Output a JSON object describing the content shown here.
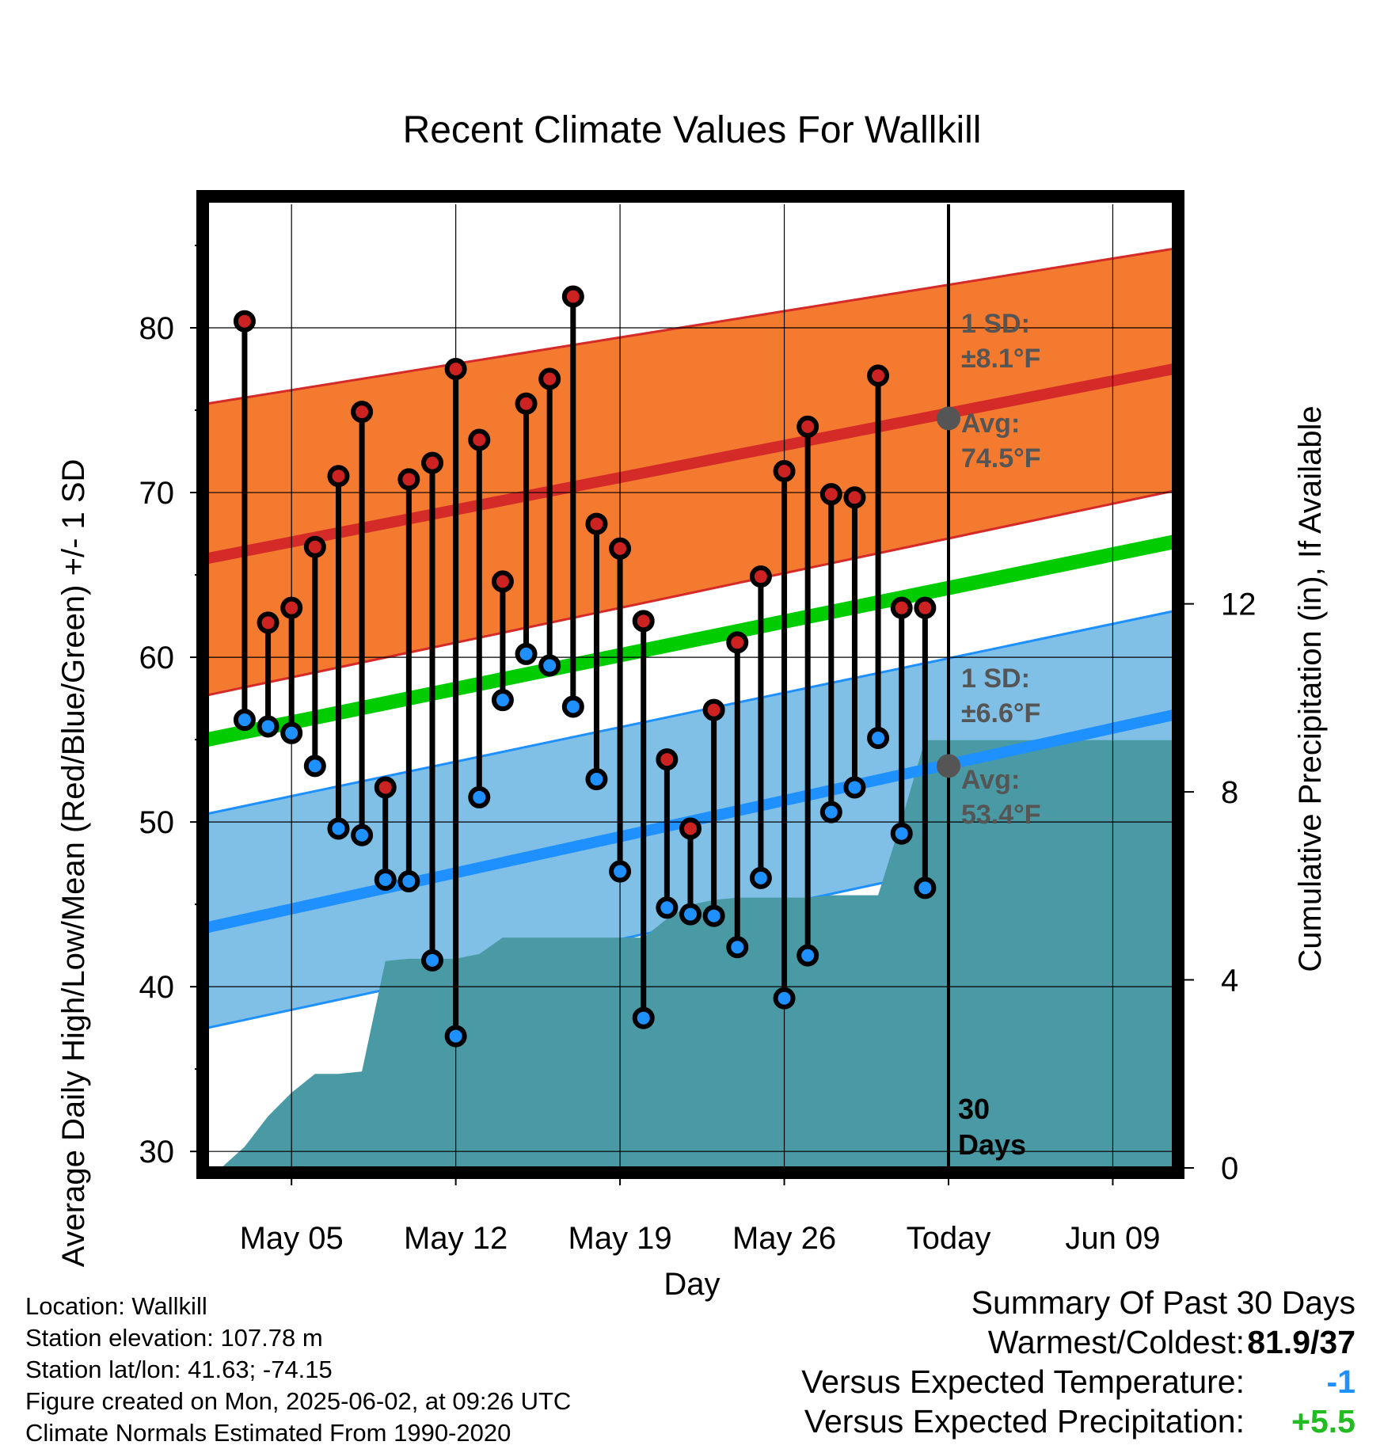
{
  "chart_data": {
    "type": "line",
    "title": "Recent Climate Values For Wallkill",
    "xlabel": "Day",
    "ylabel": "Average Daily High/Low/Mean (Red/Blue/Green) +/- 1 SD",
    "y2label": "Cumulative Precipitation (in), If Available",
    "x_tick_labels": [
      "May 05",
      "May 12",
      "May 19",
      "May 26",
      "Today",
      "Jun 09"
    ],
    "x_ticks": [
      "2025-05-05",
      "2025-05-12",
      "2025-05-19",
      "2025-05-26",
      "2025-06-02",
      "2025-06-09"
    ],
    "xlim": [
      "2025-05-01T10:00",
      "2025-06-11T14:00"
    ],
    "ylim": [
      29,
      87.5
    ],
    "yticks": [
      30,
      40,
      50,
      60,
      70,
      80
    ],
    "y2lim": [
      0,
      20.5
    ],
    "y2ticks": [
      0,
      4,
      8,
      12
    ],
    "grid": true,
    "today": "2025-06-02",
    "today_label": "30 Days",
    "normal_band_x": [
      "2025-05-01T10:00",
      "2025-06-11T14:00"
    ],
    "normal_high": {
      "mean": [
        66.0,
        77.5
      ],
      "band_low": [
        57.7,
        70.1
      ],
      "band_high": [
        75.4,
        84.8
      ],
      "sd_label": "1 SD:",
      "sd_value": "±8.1°F",
      "avg_label": "Avg:",
      "avg_value": "74.5°F",
      "avg_today": 74.5
    },
    "normal_low": {
      "mean": [
        43.6,
        56.5
      ],
      "band_low": [
        37.5,
        50.1
      ],
      "band_high": [
        50.5,
        62.8
      ],
      "sd_label": "1 SD:",
      "sd_value": "±6.6°F",
      "avg_label": "Avg:",
      "avg_value": "53.4°F",
      "avg_today": 53.4
    },
    "normal_mean": [
      55.0,
      67.0
    ],
    "daily": {
      "dates": [
        "2025-05-03",
        "2025-05-04",
        "2025-05-05",
        "2025-05-06",
        "2025-05-07",
        "2025-05-08",
        "2025-05-09",
        "2025-05-10",
        "2025-05-11",
        "2025-05-12",
        "2025-05-13",
        "2025-05-14",
        "2025-05-15",
        "2025-05-16",
        "2025-05-17",
        "2025-05-18",
        "2025-05-19",
        "2025-05-20",
        "2025-05-21",
        "2025-05-22",
        "2025-05-23",
        "2025-05-24",
        "2025-05-25",
        "2025-05-26",
        "2025-05-27",
        "2025-05-28",
        "2025-05-29",
        "2025-05-30",
        "2025-05-31",
        "2025-06-01"
      ],
      "high": [
        80.4,
        62.1,
        63.0,
        66.7,
        71.0,
        74.9,
        52.1,
        70.8,
        71.8,
        77.5,
        73.2,
        64.6,
        75.4,
        76.9,
        81.9,
        68.1,
        66.6,
        62.2,
        53.8,
        49.6,
        56.8,
        60.9,
        64.9,
        71.3,
        74.0,
        69.9,
        69.7,
        77.1,
        63.0,
        63.0
      ],
      "low": [
        56.2,
        55.8,
        55.4,
        53.4,
        49.6,
        49.2,
        46.5,
        46.4,
        41.6,
        37.0,
        51.5,
        57.4,
        60.2,
        59.5,
        57.0,
        52.6,
        47.0,
        38.1,
        44.8,
        44.4,
        44.3,
        42.4,
        46.6,
        39.3,
        41.9,
        50.6,
        52.1,
        55.1,
        49.3,
        46.0
      ]
    },
    "precip_cumulative": {
      "x": [
        "2025-05-01T10:00",
        "2025-05-02",
        "2025-05-03",
        "2025-05-04",
        "2025-05-05",
        "2025-05-06",
        "2025-05-07",
        "2025-05-08",
        "2025-05-09",
        "2025-05-10",
        "2025-05-11",
        "2025-05-12",
        "2025-05-13",
        "2025-05-14",
        "2025-05-15",
        "2025-05-16",
        "2025-05-17",
        "2025-05-18",
        "2025-05-19",
        "2025-05-20",
        "2025-05-21",
        "2025-05-22",
        "2025-05-23",
        "2025-05-24",
        "2025-05-25",
        "2025-05-26",
        "2025-05-27",
        "2025-05-28",
        "2025-05-29",
        "2025-05-30",
        "2025-05-31",
        "2025-06-01",
        "2025-06-02",
        "2025-06-11T14:00"
      ],
      "y": [
        0.0,
        0.0,
        0.45,
        1.1,
        1.6,
        2.0,
        2.0,
        2.05,
        4.4,
        4.45,
        4.45,
        4.45,
        4.55,
        4.9,
        4.9,
        4.9,
        4.9,
        4.9,
        4.9,
        4.9,
        5.3,
        5.6,
        5.7,
        5.75,
        5.75,
        5.75,
        5.75,
        5.8,
        5.8,
        5.8,
        7.4,
        9.1,
        9.1,
        9.1
      ]
    }
  },
  "footer": {
    "location": "Location: Wallkill",
    "elevation": "Station elevation: 107.78 m",
    "latlon": "Station lat/lon: 41.63; -74.15",
    "created": "Figure created on Mon, 2025-06-02, at 09:26 UTC",
    "normals": "Climate Normals Estimated From 1990-2020"
  },
  "summary": {
    "title": "Summary Of Past 30 Days",
    "warmest_label": "Warmest/Coldest:",
    "warmest_value": "81.9/37",
    "temp_label": "Versus Expected Temperature:",
    "temp_value": "-1",
    "precip_label": "Versus Expected Precipitation:",
    "precip_value": "+5.5"
  },
  "colors": {
    "high_band": "#f47a30",
    "high_line": "#d42a28",
    "low_band": "#80c0e6",
    "low_line": "#1e90ff",
    "mean_line": "#00cc00",
    "precip_fill": "#4a9aa5",
    "high_dot": "#cc2222",
    "low_dot": "#1e90ff",
    "annotation_text": "#555555",
    "temp_value": "#1e90ff",
    "precip_value": "#22bb22"
  }
}
